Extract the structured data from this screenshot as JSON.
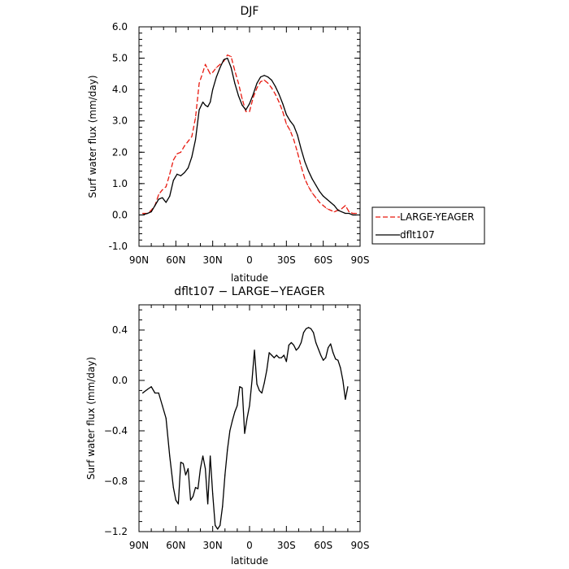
{
  "chart_data": [
    {
      "type": "line",
      "title": "DJF",
      "xlabel": "latitude",
      "ylabel": "Surf water flux (mm/day)",
      "xlim": [
        -90,
        90
      ],
      "ylim": [
        -1.0,
        6.0
      ],
      "x_ticks": [
        -90,
        -60,
        -30,
        0,
        30,
        60,
        90
      ],
      "x_tick_labels": [
        "90N",
        "60N",
        "30N",
        "0",
        "30S",
        "60S",
        "90S"
      ],
      "y_ticks": [
        -1.0,
        0.0,
        1.0,
        2.0,
        3.0,
        4.0,
        5.0,
        6.0
      ],
      "y_tick_labels": [
        "-1.0",
        "0.0",
        "1.0",
        "2.0",
        "3.0",
        "4.0",
        "5.0",
        "6.0"
      ],
      "legend": {
        "placement": "right",
        "entries": [
          "LARGE-YEAGER",
          "dflt107"
        ]
      },
      "series": [
        {
          "name": "LARGE-YEAGER",
          "color": "#e8190f",
          "dash": "dashed",
          "x": [
            -87,
            -83,
            -80,
            -77,
            -74,
            -71,
            -68,
            -65,
            -62,
            -59,
            -56,
            -53,
            -50,
            -47,
            -44,
            -41,
            -38,
            -36,
            -34,
            -32,
            -30,
            -27,
            -24,
            -21,
            -18,
            -15,
            -12,
            -9,
            -6,
            -3,
            0,
            3,
            6,
            9,
            12,
            15,
            18,
            21,
            24,
            27,
            30,
            33,
            36,
            39,
            42,
            45,
            48,
            51,
            54,
            57,
            60,
            63,
            66,
            69,
            72,
            75,
            78,
            81,
            84,
            87
          ],
          "y": [
            0.05,
            0.05,
            0.15,
            0.3,
            0.65,
            0.8,
            0.9,
            1.3,
            1.75,
            1.95,
            2.0,
            2.2,
            2.35,
            2.5,
            3.1,
            4.2,
            4.55,
            4.8,
            4.65,
            4.5,
            4.55,
            4.7,
            4.8,
            4.9,
            5.1,
            5.05,
            4.6,
            4.2,
            3.7,
            3.3,
            3.3,
            3.75,
            4.05,
            4.25,
            4.3,
            4.2,
            4.05,
            3.85,
            3.6,
            3.3,
            2.9,
            2.7,
            2.4,
            2.0,
            1.55,
            1.15,
            0.9,
            0.7,
            0.55,
            0.4,
            0.3,
            0.2,
            0.15,
            0.1,
            0.15,
            0.2,
            0.3,
            0.1,
            0.05,
            0.05
          ]
        },
        {
          "name": "dflt107",
          "color": "#000000",
          "dash": "solid",
          "x": [
            -87,
            -83,
            -80,
            -77,
            -74,
            -71,
            -68,
            -65,
            -62,
            -59,
            -56,
            -53,
            -50,
            -47,
            -44,
            -41,
            -38,
            -36,
            -34,
            -32,
            -30,
            -27,
            -24,
            -21,
            -18,
            -15,
            -12,
            -9,
            -6,
            -3,
            0,
            3,
            6,
            9,
            12,
            15,
            18,
            21,
            24,
            27,
            30,
            33,
            36,
            39,
            42,
            45,
            48,
            51,
            54,
            57,
            60,
            63,
            66,
            69,
            72,
            75,
            78,
            81,
            84,
            87
          ],
          "y": [
            0.0,
            0.05,
            0.1,
            0.3,
            0.5,
            0.55,
            0.4,
            0.6,
            1.1,
            1.3,
            1.25,
            1.35,
            1.5,
            1.85,
            2.4,
            3.35,
            3.6,
            3.5,
            3.45,
            3.6,
            4.0,
            4.4,
            4.7,
            4.95,
            5.0,
            4.7,
            4.2,
            3.8,
            3.5,
            3.35,
            3.55,
            3.85,
            4.2,
            4.4,
            4.45,
            4.4,
            4.3,
            4.1,
            3.85,
            3.55,
            3.2,
            3.0,
            2.85,
            2.55,
            2.1,
            1.7,
            1.4,
            1.15,
            0.95,
            0.75,
            0.6,
            0.5,
            0.4,
            0.3,
            0.15,
            0.1,
            0.05,
            0.05,
            0.0,
            0.0
          ]
        }
      ]
    },
    {
      "type": "line",
      "title": "dflt107 − LARGE−YEAGER",
      "xlabel": "latitude",
      "ylabel": "Surf water flux (mm/day)",
      "xlim": [
        -90,
        90
      ],
      "ylim": [
        -1.2,
        0.6
      ],
      "x_ticks": [
        -90,
        -60,
        -30,
        0,
        30,
        60,
        90
      ],
      "x_tick_labels": [
        "90N",
        "60N",
        "30N",
        "0",
        "30S",
        "60S",
        "90S"
      ],
      "y_ticks": [
        -1.2,
        -0.8,
        -0.4,
        0.0,
        0.4
      ],
      "y_tick_labels": [
        "−1.2",
        "−0.8",
        "−0.4",
        "0.0",
        "0.4"
      ],
      "series": [
        {
          "color": "#000000",
          "dash": "solid",
          "x": [
            -87,
            -83,
            -80,
            -77,
            -74,
            -71,
            -68,
            -65,
            -62,
            -60,
            -58,
            -56,
            -54,
            -52,
            -50,
            -48,
            -46,
            -44,
            -42,
            -40,
            -38,
            -36,
            -34,
            -32,
            -30,
            -28,
            -26,
            -24,
            -22,
            -20,
            -18,
            -16,
            -14,
            -12,
            -10,
            -8,
            -6,
            -4,
            -2,
            0,
            2,
            4,
            6,
            8,
            10,
            12,
            14,
            16,
            18,
            20,
            22,
            24,
            26,
            28,
            30,
            32,
            34,
            36,
            38,
            40,
            42,
            44,
            46,
            48,
            50,
            52,
            54,
            56,
            58,
            60,
            62,
            64,
            66,
            68,
            70,
            72,
            74,
            76,
            78,
            80
          ],
          "y": [
            -0.1,
            -0.07,
            -0.05,
            -0.1,
            -0.1,
            -0.2,
            -0.3,
            -0.6,
            -0.85,
            -0.95,
            -0.98,
            -0.65,
            -0.66,
            -0.75,
            -0.7,
            -0.95,
            -0.92,
            -0.85,
            -0.86,
            -0.7,
            -0.6,
            -0.7,
            -0.98,
            -0.6,
            -0.9,
            -1.15,
            -1.18,
            -1.15,
            -1.0,
            -0.75,
            -0.55,
            -0.4,
            -0.32,
            -0.25,
            -0.2,
            -0.05,
            -0.06,
            -0.42,
            -0.3,
            -0.2,
            0.0,
            0.24,
            -0.03,
            -0.08,
            -0.1,
            -0.02,
            0.08,
            0.22,
            0.2,
            0.18,
            0.2,
            0.18,
            0.18,
            0.2,
            0.15,
            0.28,
            0.3,
            0.28,
            0.24,
            0.26,
            0.3,
            0.38,
            0.41,
            0.42,
            0.41,
            0.38,
            0.3,
            0.25,
            0.2,
            0.16,
            0.18,
            0.26,
            0.29,
            0.22,
            0.17,
            0.16,
            0.1,
            0.0,
            -0.15,
            -0.05
          ]
        }
      ]
    }
  ]
}
